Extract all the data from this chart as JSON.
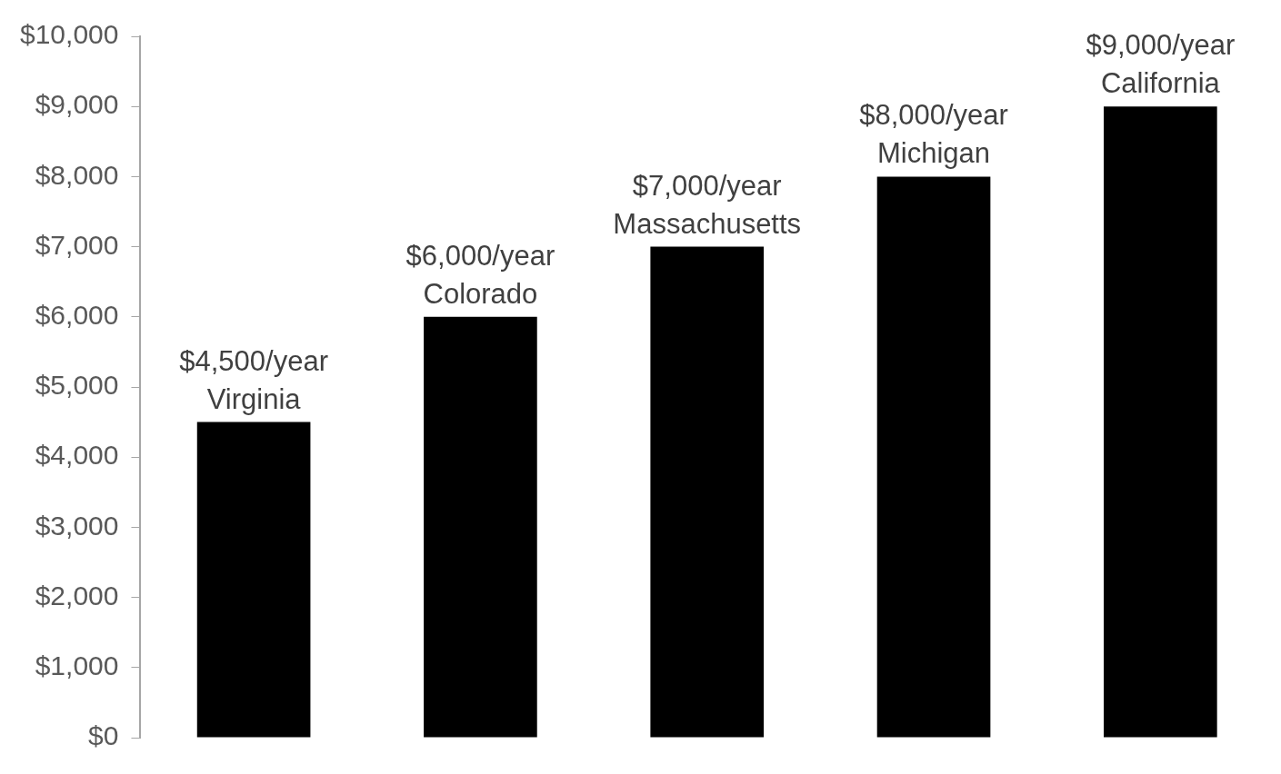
{
  "chart_data": {
    "type": "bar",
    "categories": [
      "Virginia",
      "Colorado",
      "Massachusetts",
      "Michigan",
      "California"
    ],
    "values": [
      4500,
      6000,
      7000,
      8000,
      9000
    ],
    "color": "#000000",
    "value_labels": [
      "$4,500/year",
      "$6,000/year",
      "$7,000/year",
      "$8,000/year",
      "$9,000/year"
    ],
    "ylim": [
      0,
      10000
    ],
    "yticks": [
      {
        "value": 0,
        "label": "$0"
      },
      {
        "value": 1000,
        "label": "$1,000"
      },
      {
        "value": 2000,
        "label": "$2,000"
      },
      {
        "value": 3000,
        "label": "$3,000"
      },
      {
        "value": 4000,
        "label": "$4,000"
      },
      {
        "value": 5000,
        "label": "$5,000"
      },
      {
        "value": 6000,
        "label": "$6,000"
      },
      {
        "value": 7000,
        "label": "$7,000"
      },
      {
        "value": 8000,
        "label": "$8,000"
      },
      {
        "value": 9000,
        "label": "$9,000"
      },
      {
        "value": 10000,
        "label": "$10,000"
      }
    ],
    "grid": false,
    "legend": false
  }
}
